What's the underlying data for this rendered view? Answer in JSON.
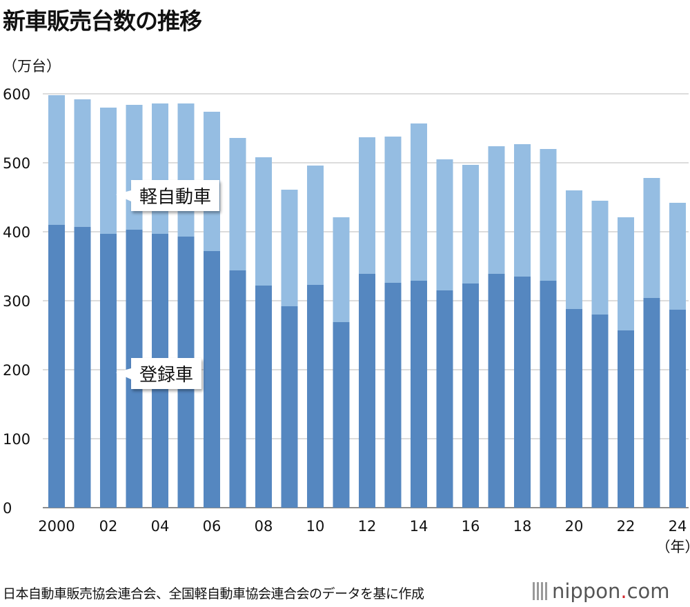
{
  "chart_data": {
    "type": "bar",
    "stacked": true,
    "title": "新車販売台数の推移",
    "ylabel": "（万台）",
    "xlabel": "（年）",
    "ylim": [
      0,
      600
    ],
    "yticks": [
      "0",
      "100",
      "200",
      "300",
      "400",
      "500",
      "600"
    ],
    "grid": true,
    "categories": [
      "2000",
      "2001",
      "2002",
      "2003",
      "2004",
      "2005",
      "2006",
      "2007",
      "2008",
      "2009",
      "2010",
      "2011",
      "2012",
      "2013",
      "2014",
      "2015",
      "2016",
      "2017",
      "2018",
      "2019",
      "2020",
      "2021",
      "2022",
      "2023",
      "2024"
    ],
    "xtick_labels": [
      "2000",
      "02",
      "04",
      "06",
      "08",
      "10",
      "12",
      "14",
      "16",
      "18",
      "20",
      "22",
      "24"
    ],
    "series": [
      {
        "name": "登録車",
        "color": "#5587c0",
        "values": [
          410,
          407,
          397,
          403,
          397,
          393,
          372,
          344,
          322,
          292,
          323,
          269,
          339,
          326,
          329,
          315,
          325,
          339,
          335,
          329,
          288,
          280,
          257,
          304,
          287
        ]
      },
      {
        "name": "軽自動車",
        "color": "#95bde2",
        "values": [
          188,
          185,
          183,
          181,
          189,
          193,
          202,
          192,
          186,
          169,
          173,
          152,
          198,
          212,
          228,
          190,
          172,
          185,
          192,
          191,
          172,
          165,
          164,
          174,
          155
        ]
      }
    ]
  },
  "source": "日本自動車販売協会連合会、全国軽自動車協会連合会のデータを基に作成",
  "logo": {
    "text": "nippon",
    "dot": ".",
    "suffix": "com"
  }
}
